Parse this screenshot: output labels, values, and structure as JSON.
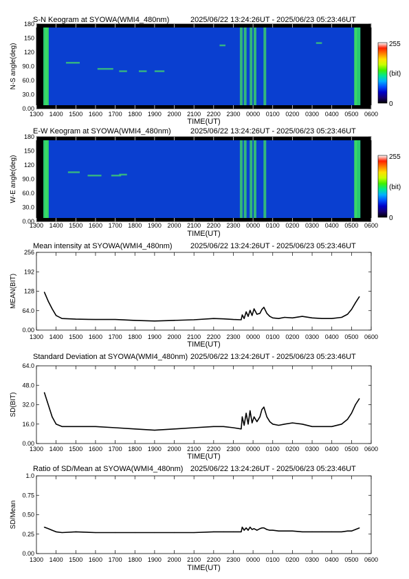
{
  "colors": {
    "background": "#ffffff",
    "line": "#000000",
    "keogram_bg": "#0a3fd0",
    "colormap": [
      "#000000",
      "#160070",
      "#0000c8",
      "#0050ff",
      "#00b0ff",
      "#00e890",
      "#40f000",
      "#c8ff00",
      "#ffe000",
      "#ff8000",
      "#ff2000",
      "#ffffff"
    ]
  },
  "time_axis": {
    "ticks": [
      "1300",
      "1400",
      "1500",
      "1600",
      "1700",
      "1800",
      "1900",
      "2000",
      "2100",
      "2200",
      "2300",
      "0000",
      "0100",
      "0200",
      "0300",
      "0400",
      "0500",
      "0600"
    ],
    "label": "TIME(UT)"
  },
  "chart_data": [
    {
      "type": "heatmap",
      "title": "S-N Keogram at SYOWA(WMI4_480nm)",
      "time_range": "2025/06/22 13:24:26UT - 2025/06/23 05:23:46UT",
      "xlabel": "TIME(UT)",
      "ylabel": "N-S angle(deg)",
      "yticks": [
        "0.00",
        "30.0",
        "60.0",
        "90.0",
        "120",
        "150",
        "180"
      ],
      "ylim": [
        0,
        180
      ],
      "colorbar": {
        "min_label": "0",
        "max_label": "255",
        "unit_label": "(bit)"
      },
      "bright_bands_hours": [
        13.5,
        23.4,
        23.6,
        23.9,
        24.1,
        24.6,
        29.2
      ],
      "streaks": [
        {
          "t": 14.5,
          "deg": 98,
          "len_h": 0.7
        },
        {
          "t": 16.1,
          "deg": 85,
          "len_h": 0.8
        },
        {
          "t": 17.2,
          "deg": 80,
          "len_h": 0.4
        },
        {
          "t": 18.2,
          "deg": 80,
          "len_h": 0.4
        },
        {
          "t": 19.0,
          "deg": 80,
          "len_h": 0.5
        },
        {
          "t": 22.3,
          "deg": 135,
          "len_h": 0.3
        },
        {
          "t": 27.2,
          "deg": 140,
          "len_h": 0.3
        }
      ]
    },
    {
      "type": "heatmap",
      "title": "E-W Keogram at SYOWA(WMI4_480nm)",
      "time_range": "2025/06/22 13:24:26UT - 2025/06/23 05:23:46UT",
      "xlabel": "TIME(UT)",
      "ylabel": "W-E angle(deg)",
      "yticks": [
        "0.00",
        "30.0",
        "60.0",
        "90.0",
        "120",
        "150",
        "180"
      ],
      "ylim": [
        0,
        180
      ],
      "colorbar": {
        "min_label": "0",
        "max_label": "255",
        "unit_label": "(bit)"
      },
      "bright_bands_hours": [
        13.5,
        23.4,
        23.6,
        23.9,
        24.1,
        24.6,
        29.2
      ],
      "streaks": [
        {
          "t": 14.6,
          "deg": 105,
          "len_h": 0.6
        },
        {
          "t": 15.6,
          "deg": 98,
          "len_h": 0.7
        },
        {
          "t": 16.8,
          "deg": 98,
          "len_h": 0.5
        },
        {
          "t": 17.2,
          "deg": 100,
          "len_h": 0.4
        }
      ]
    },
    {
      "type": "line",
      "title": "Mean intensity at SYOWA(WMI4_480nm)",
      "time_range": "2025/06/22 13:24:26UT - 2025/06/23 05:23:46UT",
      "xlabel": "TIME(UT)",
      "ylabel": "MEAN(BIT)",
      "yticks": [
        "0.00",
        "64.0",
        "128",
        "192",
        "256"
      ],
      "ylim": [
        0,
        256
      ],
      "x_hours": [
        13.4,
        13.6,
        13.8,
        14.0,
        14.3,
        15.0,
        16.0,
        17.0,
        18.0,
        19.0,
        20.0,
        21.0,
        22.0,
        22.5,
        23.0,
        23.4,
        23.45,
        23.55,
        23.65,
        23.75,
        23.85,
        23.95,
        24.05,
        24.2,
        24.35,
        24.45,
        24.55,
        24.7,
        24.85,
        25.0,
        25.3,
        25.6,
        26.0,
        26.5,
        27.0,
        27.5,
        28.0,
        28.5,
        28.8,
        29.0,
        29.2,
        29.4
      ],
      "values": [
        125,
        95,
        70,
        48,
        38,
        36,
        35,
        35,
        32,
        30,
        32,
        34,
        38,
        37,
        35,
        34,
        50,
        38,
        60,
        45,
        65,
        48,
        70,
        52,
        55,
        68,
        75,
        55,
        45,
        40,
        38,
        42,
        40,
        45,
        40,
        38,
        38,
        42,
        52,
        68,
        90,
        110
      ],
      "series": [
        {
          "values": []
        }
      ]
    },
    {
      "type": "line",
      "title": "Standard Deviation at SYOWA(WMI4_480nm)",
      "time_range": "2025/06/22 13:24:26UT - 2025/06/23 05:23:46UT",
      "xlabel": "TIME(UT)",
      "ylabel": "SD(BIT)",
      "yticks": [
        "0.00",
        "16.0",
        "32.0",
        "48.0",
        "64.0"
      ],
      "ylim": [
        0,
        64
      ],
      "x_hours": [
        13.4,
        13.6,
        13.8,
        14.0,
        14.3,
        15.0,
        16.0,
        17.0,
        18.0,
        19.0,
        20.0,
        21.0,
        22.0,
        22.5,
        23.0,
        23.4,
        23.45,
        23.55,
        23.65,
        23.75,
        23.85,
        23.95,
        24.05,
        24.2,
        24.35,
        24.45,
        24.55,
        24.7,
        24.85,
        25.0,
        25.3,
        25.6,
        26.0,
        26.5,
        27.0,
        27.5,
        28.0,
        28.5,
        28.8,
        29.0,
        29.2,
        29.4
      ],
      "values": [
        42,
        32,
        22,
        16,
        14,
        14,
        14,
        13,
        12,
        11,
        12,
        13,
        14,
        14,
        13,
        12,
        22,
        15,
        25,
        16,
        27,
        17,
        22,
        18,
        22,
        28,
        30,
        22,
        18,
        16,
        15,
        16,
        17,
        16,
        14,
        14,
        14,
        16,
        20,
        25,
        32,
        37
      ],
      "series": [
        {
          "values": []
        }
      ]
    },
    {
      "type": "line",
      "title": "Ratio of SD/Mean at SYOWA(WMI4_480nm)",
      "time_range": "2025/06/22 13:24:26UT - 2025/06/23 05:23:46UT",
      "xlabel": "TIME(UT)",
      "ylabel": "SD/Mean",
      "yticks": [
        "0.00",
        "0.25",
        "0.50",
        "0.75",
        "1.0"
      ],
      "ylim": [
        0,
        1
      ],
      "x_hours": [
        13.4,
        13.6,
        13.8,
        14.0,
        14.3,
        15.0,
        16.0,
        17.0,
        18.0,
        19.0,
        20.0,
        21.0,
        22.0,
        22.5,
        23.0,
        23.4,
        23.45,
        23.55,
        23.65,
        23.75,
        23.85,
        23.95,
        24.05,
        24.2,
        24.35,
        24.45,
        24.55,
        24.7,
        24.85,
        25.0,
        25.3,
        25.6,
        26.0,
        26.5,
        27.0,
        27.5,
        28.0,
        28.5,
        28.8,
        29.0,
        29.2,
        29.4
      ],
      "values": [
        0.34,
        0.32,
        0.3,
        0.28,
        0.27,
        0.28,
        0.27,
        0.27,
        0.27,
        0.27,
        0.27,
        0.27,
        0.28,
        0.28,
        0.28,
        0.28,
        0.34,
        0.3,
        0.33,
        0.3,
        0.34,
        0.31,
        0.32,
        0.3,
        0.32,
        0.33,
        0.33,
        0.31,
        0.3,
        0.3,
        0.29,
        0.29,
        0.29,
        0.28,
        0.28,
        0.28,
        0.28,
        0.28,
        0.29,
        0.29,
        0.31,
        0.33
      ],
      "series": [
        {
          "values": []
        }
      ]
    }
  ]
}
